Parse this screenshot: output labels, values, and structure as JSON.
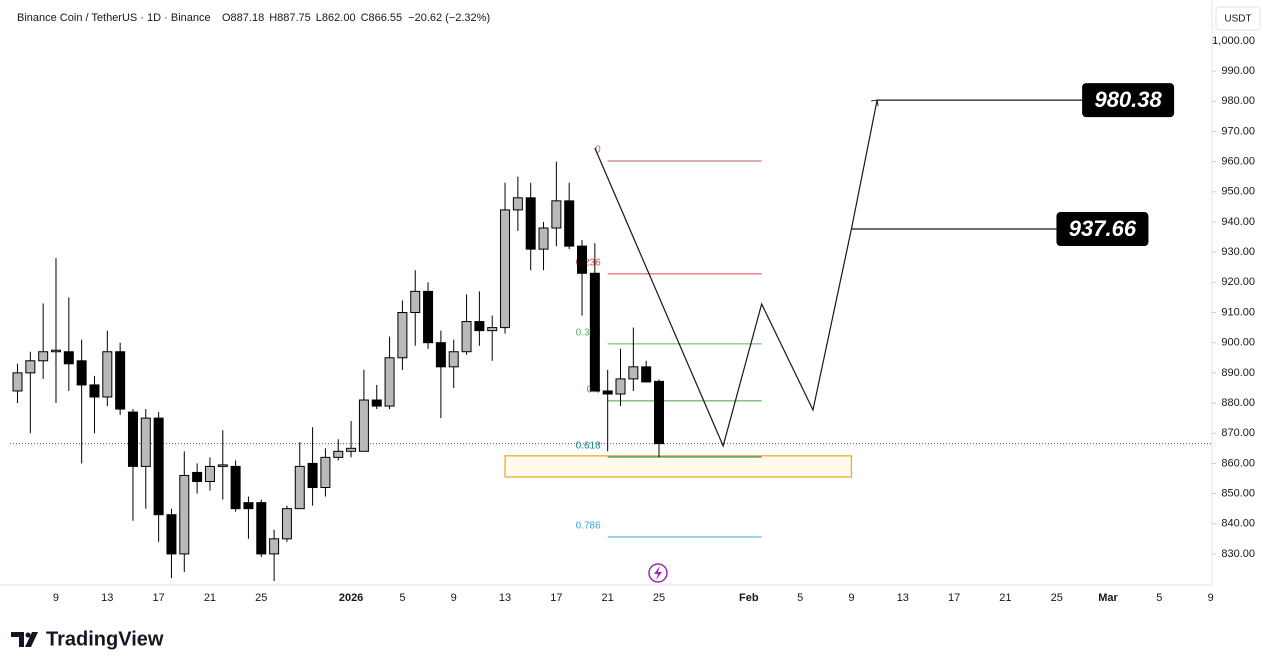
{
  "chart_data": {
    "type": "candlestick",
    "title": "Binance Coin / TetherUS · 1D · Binance",
    "ohlc_text": [
      "O887.18",
      "H887.75",
      "L862.00",
      "C866.55"
    ],
    "change_text": "−20.62 (−2.32%)",
    "axis_unit": "USDT",
    "branding": "TradingView",
    "up_color": "#b9b9b9",
    "down_color": "#000000",
    "categories": [
      null,
      null,
      null,
      "9",
      null,
      null,
      null,
      "13",
      null,
      null,
      null,
      "17",
      null,
      null,
      null,
      "21",
      null,
      null,
      null,
      "25",
      null,
      null,
      null,
      null,
      null,
      null,
      "2026",
      null,
      null,
      null,
      "5",
      null,
      null,
      null,
      "9",
      null,
      null,
      null,
      "13",
      null,
      null,
      null,
      "17",
      null,
      null,
      null,
      "21",
      null,
      null,
      null,
      "25",
      null,
      null,
      null,
      null,
      null,
      null,
      "Feb",
      null,
      null,
      null,
      "5",
      null,
      null,
      null,
      "9",
      null,
      null,
      null,
      "13",
      null,
      null,
      null,
      "17",
      null,
      null,
      null,
      "21",
      null,
      null,
      null,
      "25",
      null,
      null,
      null,
      "Mar",
      null,
      null,
      null,
      "5",
      null,
      null,
      null,
      "9"
    ],
    "open": [
      884,
      890,
      894,
      897,
      897,
      894,
      886,
      882,
      897,
      877,
      859,
      875,
      843,
      830,
      857,
      854,
      859,
      859,
      847,
      847,
      830,
      835,
      845,
      860,
      852,
      862,
      864,
      864,
      881,
      879,
      895,
      910,
      917,
      900,
      892,
      897,
      907,
      904,
      905,
      944,
      948,
      931,
      938,
      947,
      932,
      923,
      884,
      883,
      888,
      892,
      887.18,
      null,
      null,
      null,
      null,
      null,
      null,
      null,
      null,
      null,
      null,
      null,
      null,
      null,
      null,
      null,
      null,
      null,
      null,
      null,
      null,
      null,
      null,
      null,
      null,
      null,
      null,
      null,
      null,
      null,
      null,
      null,
      null,
      null,
      null,
      null,
      null,
      null,
      null,
      null,
      null,
      null,
      null,
      null
    ],
    "high": [
      893,
      897,
      913,
      928,
      915,
      901,
      889,
      904,
      900,
      878,
      878,
      877,
      845,
      864,
      860,
      862,
      871,
      861,
      849,
      848,
      838,
      846,
      867,
      872,
      865,
      868,
      874,
      891,
      886,
      902,
      914,
      924,
      920,
      904,
      901,
      916,
      917,
      909,
      953,
      955,
      953,
      940,
      960,
      953,
      934,
      933,
      891,
      898,
      905,
      894,
      887.75,
      null,
      null,
      null,
      null,
      null,
      null,
      null,
      null,
      null,
      null,
      null,
      null,
      null,
      null,
      null,
      null,
      null,
      null,
      null,
      null,
      null,
      null,
      null,
      null,
      null,
      null,
      null,
      null,
      null,
      null,
      null,
      null,
      null,
      null,
      null,
      null,
      null,
      null,
      null,
      null,
      null,
      null,
      null
    ],
    "low": [
      880,
      870,
      888,
      880,
      884,
      860,
      870,
      879,
      876,
      841,
      845,
      834,
      822,
      824,
      850,
      851,
      848,
      844,
      835,
      829,
      821,
      834,
      845,
      846,
      849,
      861,
      862,
      864,
      878,
      878,
      891,
      899,
      898,
      875,
      885,
      896,
      899,
      894,
      903,
      937,
      924,
      924,
      932,
      931,
      909,
      884,
      864,
      879,
      884,
      887,
      862,
      null,
      null,
      null,
      null,
      null,
      null,
      null,
      null,
      null,
      null,
      null,
      null,
      null,
      null,
      null,
      null,
      null,
      null,
      null,
      null,
      null,
      null,
      null,
      null,
      null,
      null,
      null,
      null,
      null,
      null,
      null,
      null,
      null,
      null,
      null,
      null,
      null,
      null,
      null,
      null,
      null,
      null,
      null
    ],
    "close": [
      890,
      894,
      897,
      897.5,
      893,
      886,
      882,
      897,
      878,
      859,
      875,
      843,
      830,
      856,
      854,
      859,
      859.5,
      845,
      845,
      830,
      835,
      845,
      859,
      852,
      862,
      864,
      865,
      881,
      879,
      895,
      910,
      917,
      900,
      892,
      897,
      907,
      904,
      905,
      944,
      948,
      931,
      938,
      947,
      932,
      923,
      884,
      883,
      888,
      892,
      887,
      866.55,
      null,
      null,
      null,
      null,
      null,
      null,
      null,
      null,
      null,
      null,
      null,
      null,
      null,
      null,
      null,
      null,
      null,
      null,
      null,
      null,
      null,
      null,
      null,
      null,
      null,
      null,
      null,
      null,
      null,
      null,
      null,
      null,
      null,
      null,
      null,
      null,
      null,
      null,
      null,
      null,
      null,
      null,
      null
    ],
    "ylim": [
      819.7,
      1011.9
    ],
    "yticks": [
      {
        "value": 830,
        "label": "830.00"
      },
      {
        "value": 840,
        "label": "840.00"
      },
      {
        "value": 850,
        "label": "850.00"
      },
      {
        "value": 860,
        "label": "860.00"
      },
      {
        "value": 870,
        "label": "870.00"
      },
      {
        "value": 880,
        "label": "880.00"
      },
      {
        "value": 890,
        "label": "890.00"
      },
      {
        "value": 900,
        "label": "900.00"
      },
      {
        "value": 910,
        "label": "910.00"
      },
      {
        "value": 920,
        "label": "920.00"
      },
      {
        "value": 930,
        "label": "930.00"
      },
      {
        "value": 940,
        "label": "940.00"
      },
      {
        "value": 950,
        "label": "950.00"
      },
      {
        "value": 960,
        "label": "960.00"
      },
      {
        "value": 970,
        "label": "970.00"
      },
      {
        "value": 980,
        "label": "980.00"
      },
      {
        "value": 990,
        "label": "990.00"
      },
      {
        "value": 1000,
        "label": "1,000.00"
      }
    ],
    "fibonacci": {
      "from": 46,
      "to": 58,
      "levels": [
        {
          "level": 0,
          "price": 960.2,
          "color": "#b5615d"
        },
        {
          "level": 0.236,
          "price": 922.8,
          "color": "#e04646"
        },
        {
          "level": 0.382,
          "price": 899.6,
          "color": "#5fb05f"
        },
        {
          "level": 0.5,
          "price": 880.7,
          "color": "#43a047"
        },
        {
          "level": 0.618,
          "price": 862.1,
          "color": "#0d8a7a"
        },
        {
          "level": 0.786,
          "price": 835.6,
          "color": "#3aa8d8"
        }
      ]
    },
    "zone": {
      "top": 862.5,
      "bottom": 855.5,
      "from": 38,
      "to": 65,
      "color": "#f0a31c"
    },
    "projection": {
      "x": [
        45,
        55,
        58,
        62,
        65,
        67
      ],
      "values": [
        964.5,
        865.8,
        912.8,
        877.7,
        937.7,
        980.4
      ],
      "color": "#131722"
    },
    "targets": {
      "values": [
        980.38,
        937.66
      ],
      "from": [
        67,
        65
      ]
    }
  }
}
